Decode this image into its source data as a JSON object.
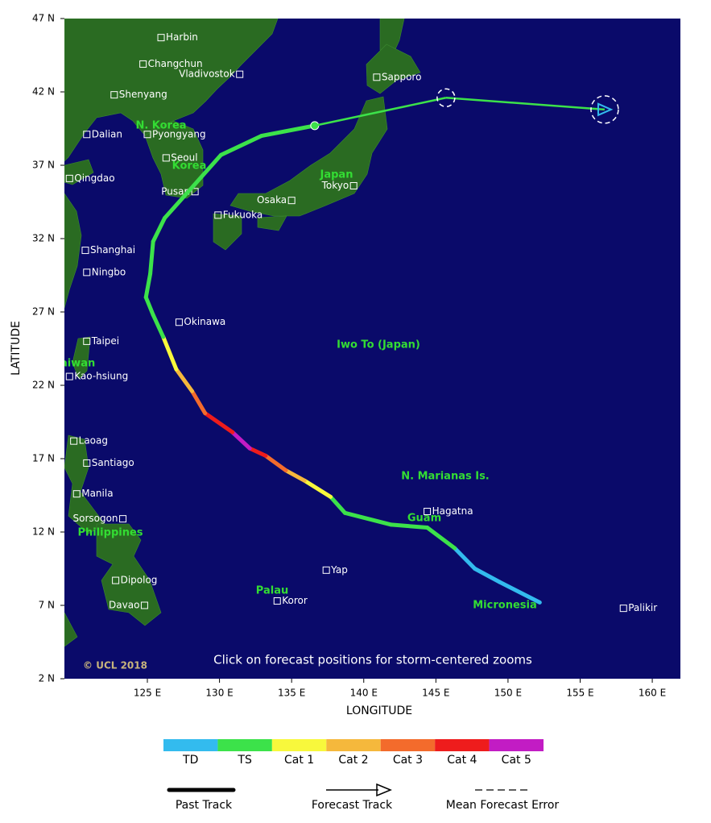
{
  "axes": {
    "x_label": "LONGITUDE",
    "y_label": "LATITUDE",
    "xlim": [
      119.25,
      161.95
    ],
    "ylim": [
      2,
      47
    ],
    "xticks": [
      {
        "value": 125,
        "label": "125 E"
      },
      {
        "value": 130,
        "label": "130 E"
      },
      {
        "value": 135,
        "label": "135 E"
      },
      {
        "value": 140,
        "label": "140 E"
      },
      {
        "value": 145,
        "label": "145 E"
      },
      {
        "value": 150,
        "label": "150 E"
      },
      {
        "value": 155,
        "label": "155 E"
      },
      {
        "value": 160,
        "label": "160 E"
      }
    ],
    "yticks": [
      {
        "value": 2,
        "label": "2 N"
      },
      {
        "value": 7,
        "label": "7 N"
      },
      {
        "value": 12,
        "label": "12 N"
      },
      {
        "value": 17,
        "label": "17 N"
      },
      {
        "value": 22,
        "label": "22 N"
      },
      {
        "value": 27,
        "label": "27 N"
      },
      {
        "value": 32,
        "label": "32 N"
      },
      {
        "value": 37,
        "label": "37 N"
      },
      {
        "value": 42,
        "label": "42 N"
      },
      {
        "value": 47,
        "label": "47 N"
      }
    ]
  },
  "cities": [
    {
      "name": "Harbin",
      "lon": 125.95,
      "lat": 45.7
    },
    {
      "name": "Changchun",
      "lon": 124.7,
      "lat": 43.9
    },
    {
      "name": "Vladivostok",
      "lon": 131.4,
      "lat": 43.2
    },
    {
      "name": "Shenyang",
      "lon": 122.7,
      "lat": 41.8
    },
    {
      "name": "Sapporo",
      "lon": 140.9,
      "lat": 43.0
    },
    {
      "name": "Dalian",
      "lon": 120.8,
      "lat": 39.1
    },
    {
      "name": "Pyongyang",
      "lon": 125.0,
      "lat": 39.1
    },
    {
      "name": "Seoul",
      "lon": 126.3,
      "lat": 37.5
    },
    {
      "name": "Qingdao",
      "lon": 119.6,
      "lat": 36.1
    },
    {
      "name": "Pusan",
      "lon": 128.3,
      "lat": 35.2
    },
    {
      "name": "Osaka",
      "lon": 135.0,
      "lat": 34.6
    },
    {
      "name": "Tokyo",
      "lon": 139.3,
      "lat": 35.6
    },
    {
      "name": "Fukuoka",
      "lon": 129.9,
      "lat": 33.6
    },
    {
      "name": "Shanghai",
      "lon": 120.7,
      "lat": 31.2
    },
    {
      "name": "Ningbo",
      "lon": 120.8,
      "lat": 29.7
    },
    {
      "name": "Okinawa",
      "lon": 127.2,
      "lat": 26.3
    },
    {
      "name": "Taipei",
      "lon": 120.8,
      "lat": 25.0
    },
    {
      "name": "Kao-hsiung",
      "lon": 119.6,
      "lat": 22.6
    },
    {
      "name": "Laoag",
      "lon": 119.9,
      "lat": 18.2
    },
    {
      "name": "Santiago",
      "lon": 120.8,
      "lat": 16.7
    },
    {
      "name": "Manila",
      "lon": 120.1,
      "lat": 14.6
    },
    {
      "name": "Sorsogon",
      "lon": 123.3,
      "lat": 12.9
    },
    {
      "name": "Hagatna",
      "lon": 144.4,
      "lat": 13.4
    },
    {
      "name": "Yap",
      "lon": 137.4,
      "lat": 9.4
    },
    {
      "name": "Dipolog",
      "lon": 122.8,
      "lat": 8.7
    },
    {
      "name": "Davao",
      "lon": 124.8,
      "lat": 7.0
    },
    {
      "name": "Koror",
      "lon": 134.0,
      "lat": 7.3
    },
    {
      "name": "Palikir",
      "lon": 158.0,
      "lat": 6.8
    }
  ],
  "regions": [
    "N. Korea",
    "Korea",
    "Japan",
    "Iwo To (Japan)",
    "Taiwan",
    "Philippines",
    "N. Marianas Is.",
    "Guam",
    "Palau",
    "Micronesia"
  ],
  "categories": [
    {
      "name": "TD",
      "color": "#33bbee"
    },
    {
      "name": "TS",
      "color": "#3ce24a"
    },
    {
      "name": "Cat 1",
      "color": "#f8f83c"
    },
    {
      "name": "Cat 2",
      "color": "#f5b83c"
    },
    {
      "name": "Cat 3",
      "color": "#f36b2c"
    },
    {
      "name": "Cat 4",
      "color": "#ee1c1c"
    },
    {
      "name": "Cat 5",
      "color": "#c21cc4"
    }
  ],
  "track": {
    "points": [
      {
        "lon": 152.2,
        "lat": 7.2,
        "category": "TD"
      },
      {
        "lon": 149.4,
        "lat": 8.6,
        "category": "TD"
      },
      {
        "lon": 147.7,
        "lat": 9.5,
        "category": "TD"
      },
      {
        "lon": 146.3,
        "lat": 10.9,
        "category": "TS"
      },
      {
        "lon": 144.4,
        "lat": 12.3,
        "category": "TS"
      },
      {
        "lon": 141.9,
        "lat": 12.5,
        "category": "TS"
      },
      {
        "lon": 138.7,
        "lat": 13.3,
        "category": "TS"
      },
      {
        "lon": 137.7,
        "lat": 14.4,
        "category": "Cat 1"
      },
      {
        "lon": 135.9,
        "lat": 15.5,
        "category": "Cat 2"
      },
      {
        "lon": 134.6,
        "lat": 16.2,
        "category": "Cat 3"
      },
      {
        "lon": 133.2,
        "lat": 17.2,
        "category": "Cat 4"
      },
      {
        "lon": 132.1,
        "lat": 17.7,
        "category": "Cat 5"
      },
      {
        "lon": 130.9,
        "lat": 18.8,
        "category": "Cat 4"
      },
      {
        "lon": 129.0,
        "lat": 20.1,
        "category": "Cat 3"
      },
      {
        "lon": 128.1,
        "lat": 21.6,
        "category": "Cat 2"
      },
      {
        "lon": 127.0,
        "lat": 23.1,
        "category": "Cat 1"
      },
      {
        "lon": 126.1,
        "lat": 25.3,
        "category": "TS"
      },
      {
        "lon": 125.4,
        "lat": 26.8,
        "category": "TS"
      },
      {
        "lon": 124.9,
        "lat": 28.0,
        "category": "TS"
      },
      {
        "lon": 125.2,
        "lat": 29.6,
        "category": "TS"
      },
      {
        "lon": 125.4,
        "lat": 31.8,
        "category": "TS"
      },
      {
        "lon": 126.2,
        "lat": 33.4,
        "category": "TS"
      },
      {
        "lon": 128.2,
        "lat": 35.6,
        "category": "TS"
      },
      {
        "lon": 130.1,
        "lat": 37.7,
        "category": "TS"
      },
      {
        "lon": 132.9,
        "lat": 39.0,
        "category": "TS"
      },
      {
        "lon": 136.6,
        "lat": 39.7,
        "category": "TS"
      }
    ],
    "forecast": [
      {
        "lon": 145.7,
        "lat": 41.6,
        "category": "TS"
      },
      {
        "lon": 156.7,
        "lat": 40.8,
        "category": "TD"
      }
    ]
  },
  "legend": {
    "past": "Past Track",
    "forecast": "Forecast Track",
    "error": "Mean Forecast Error"
  },
  "note": "Click on forecast positions for storm-centered zooms",
  "copyright": "© UCL 2018"
}
